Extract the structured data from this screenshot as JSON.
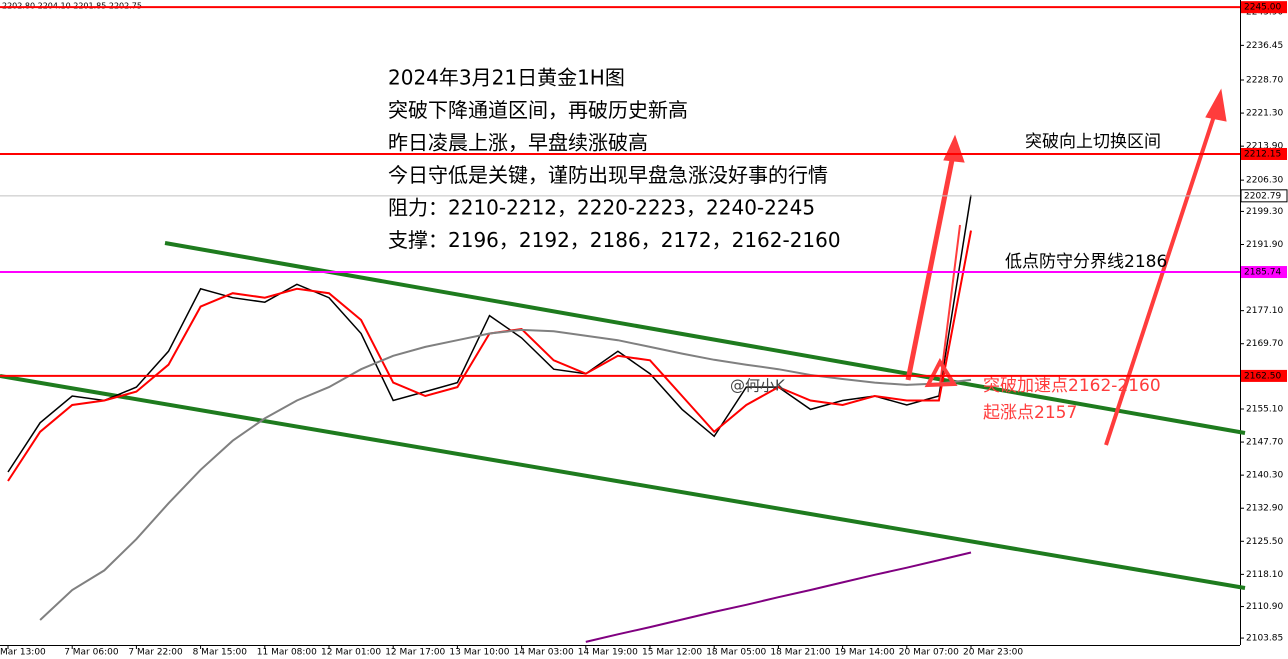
{
  "chart_data": {
    "type": "line",
    "ohlc_header": "2202.80 2204.10 2201.85 2202.75",
    "categories": [
      "Mar 13:00",
      null,
      "7 Mar 06:00",
      null,
      "7 Mar 22:00",
      null,
      "8 Mar 15:00",
      null,
      "11 Mar 08:00",
      null,
      "12 Mar 01:00",
      null,
      "12 Mar 17:00",
      null,
      "13 Mar 10:00",
      null,
      "14 Mar 03:00",
      null,
      "14 Mar 19:00",
      null,
      "15 Mar 12:00",
      null,
      "18 Mar 05:00",
      null,
      "18 Mar 21:00",
      null,
      "19 Mar 14:00",
      null,
      "20 Mar 07:00",
      null,
      "20 Mar 23:00"
    ],
    "series": [
      {
        "color": "#000000",
        "values": [
          2141,
          2152,
          2158,
          2157,
          2160,
          2168,
          2182,
          2180,
          2179,
          2183,
          2180,
          2172,
          2157,
          2159,
          2161,
          2176,
          2171,
          2164,
          2163,
          2168,
          2163,
          2155,
          2149,
          2160,
          2160,
          2155,
          2157,
          2158,
          2156,
          2158,
          2203
        ]
      },
      {
        "color": "#ff0000",
        "values": [
          2139,
          2150,
          2156,
          2157,
          2159,
          2165,
          2178,
          2181,
          2180,
          2182,
          2181,
          2175,
          2161,
          2158,
          2160,
          2172,
          2173,
          2166,
          2163,
          2167,
          2166,
          2158,
          2150,
          2156,
          2160,
          2157,
          2156,
          2158,
          2157,
          2157,
          2195
        ]
      },
      {
        "color": "#808080",
        "values": [
          null,
          2107.9,
          2114.6,
          2119,
          2126,
          2134,
          2141.5,
          2148,
          2153,
          2157,
          2160,
          2164,
          2167,
          2169,
          2170.5,
          2172,
          2172.8,
          2172.5,
          2171.5,
          2170.5,
          2169,
          2167.5,
          2166.1,
          2165,
          2164,
          2162.7,
          2161.8,
          2161,
          2160.5,
          2160.8,
          2161.6
        ]
      },
      {
        "color": "#800080",
        "values": [
          null,
          null,
          null,
          null,
          null,
          null,
          null,
          null,
          null,
          null,
          null,
          null,
          null,
          null,
          null,
          null,
          null,
          null,
          2103,
          2104.7,
          2106.3,
          2108,
          2109.7,
          2111.3,
          2113,
          2114.6,
          2116.3,
          2118,
          2119.6,
          2121.3,
          2123
        ]
      }
    ],
    "ylim": [
      2102.3,
      2246.6
    ],
    "yticks": [
      {
        "value": 2243.9,
        "label": "2243.90"
      },
      {
        "value": 2236.45,
        "label": "2236.45"
      },
      {
        "value": 2228.7,
        "label": "2228.70"
      },
      {
        "value": 2221.3,
        "label": "2221.30"
      },
      {
        "value": 2213.9,
        "label": "2213.90"
      },
      {
        "value": 2206.3,
        "label": "2206.30"
      },
      {
        "value": 2199.3,
        "label": "2199.30"
      },
      {
        "value": 2191.9,
        "label": "2191.90"
      },
      {
        "value": 2177.1,
        "label": "2177.10"
      },
      {
        "value": 2169.7,
        "label": "2169.70"
      },
      {
        "value": 2155.1,
        "label": "2155.10"
      },
      {
        "value": 2147.7,
        "label": "2147.70"
      },
      {
        "value": 2140.3,
        "label": "2140.30"
      },
      {
        "value": 2132.9,
        "label": "2132.90"
      },
      {
        "value": 2125.5,
        "label": "2125.50"
      },
      {
        "value": 2118.1,
        "label": "2118.10"
      },
      {
        "value": 2110.9,
        "label": "2110.90"
      },
      {
        "value": 2103.85,
        "label": "2103.85"
      }
    ],
    "hlines": [
      {
        "value": 2245,
        "label": "2245.00",
        "color": "#ff0000"
      },
      {
        "value": 2212.15,
        "label": "2212.15",
        "color": "#ff0000"
      },
      {
        "value": 2185.74,
        "label": "2185.74",
        "color": "#ff00ff"
      },
      {
        "value": 2162.5,
        "label": "2162.50",
        "color": "#ff0000"
      },
      {
        "value": 2202.79,
        "label": "2202.79",
        "color": "#c0c0c0"
      }
    ],
    "annotation_lines": [
      "2024年3月21日黄金1H图",
      "突破下降通道区间，再破历史新高",
      "昨日凌晨上涨，早盘续涨破高",
      "今日守低是关键，谨防出现早盘急涨没好事的行情",
      "阻力：2210-2212，2220-2223，2240-2245",
      "支撑：2196，2192，2186，2172，2162-2160"
    ],
    "label_switch": "突破向上切换区间",
    "label_defense": "低点防守分界线2186",
    "label_breakout": "突破加速点2162-2160",
    "label_start": "起涨点2157",
    "watermark": "@何小K"
  }
}
